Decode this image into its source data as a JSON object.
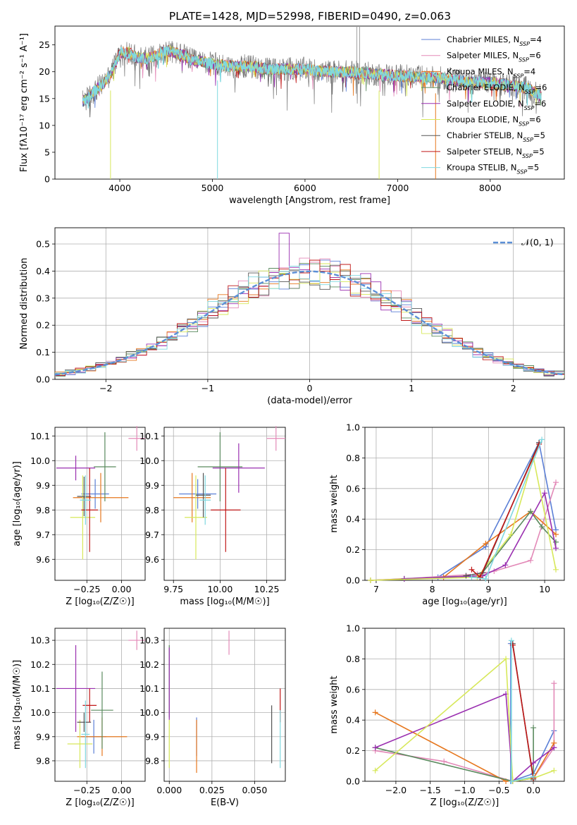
{
  "figure_title": "PLATE=1428, MJD=52998, FIBERID=0490, z=0.063",
  "models": [
    {
      "name": "Chabrier MILES",
      "nssp": "4",
      "color": "#5b7fd6"
    },
    {
      "name": "Salpeter MILES",
      "nssp": "6",
      "color": "#e38ab8"
    },
    {
      "name": "Kroupa MILES",
      "nssp": "4",
      "color": "#e6771e"
    },
    {
      "name": "Chabrier ELODIE",
      "nssp": "6",
      "color": "#5a8a5e"
    },
    {
      "name": "Salpeter ELODIE",
      "nssp": "6",
      "color": "#9a2fb0"
    },
    {
      "name": "Kroupa ELODIE",
      "nssp": "6",
      "color": "#d7e85a"
    },
    {
      "name": "Chabrier STELIB",
      "nssp": "5",
      "color": "#555555"
    },
    {
      "name": "Salpeter STELIB",
      "nssp": "5",
      "color": "#c01818"
    },
    {
      "name": "Kroupa STELIB",
      "nssp": "5",
      "color": "#7fd8e0"
    }
  ],
  "chart_data": [
    {
      "id": "spectrum",
      "type": "line",
      "xlabel": "wavelength [Angstrom, rest frame]",
      "ylabel": "Flux [fλ10⁻¹⁷ erg cm⁻² s⁻¹ A⁻¹]",
      "xlim": [
        3300,
        8800
      ],
      "ylim": [
        0,
        28.5
      ],
      "xticks": [
        "4000",
        "5000",
        "6000",
        "7000",
        "8000"
      ],
      "yticks": [
        "0",
        "5",
        "10",
        "15",
        "20",
        "25"
      ],
      "legend": "right",
      "continuum": {
        "x": [
          3600,
          3650,
          3700,
          3800,
          3900,
          4000,
          4100,
          4200,
          4300,
          4400,
          4500,
          4600,
          4700,
          4800,
          5000,
          5200,
          5400,
          5600,
          5800,
          6000,
          6200,
          6400,
          6600,
          6800,
          7000,
          7200,
          7400,
          7600,
          7800,
          8000,
          8200,
          8400,
          8550
        ],
        "y": [
          14.5,
          15,
          16,
          17.5,
          19.5,
          23.5,
          23.5,
          22.5,
          22.5,
          23,
          24,
          23.5,
          23,
          22,
          21.5,
          21,
          21,
          20.5,
          20.5,
          20.5,
          20,
          20,
          19.8,
          19.5,
          19.3,
          19,
          19,
          18.5,
          18,
          18,
          17.5,
          17,
          15.5
        ]
      },
      "dips": [
        {
          "x": 3900,
          "y": 0
        },
        {
          "x": 5055,
          "y": 0
        },
        {
          "x": 6800,
          "y": 0
        },
        {
          "x": 7410,
          "y": 0
        }
      ],
      "spikes": [
        {
          "x": 6560,
          "y": 28.5
        },
        {
          "x": 6590,
          "y": 28.5
        }
      ]
    },
    {
      "id": "residuals",
      "type": "bar",
      "xlabel": "(data-model)/error",
      "ylabel": "Normed distribution",
      "xlim": [
        -2.5,
        2.5
      ],
      "ylim": [
        0,
        0.56
      ],
      "xticks": [
        "−2",
        "−1",
        "0",
        "1",
        "2"
      ],
      "yticks": [
        "0.0",
        "0.1",
        "0.2",
        "0.3",
        "0.4",
        "0.5"
      ],
      "bin_width": 0.1,
      "reference_label": "𝒩(0, 1)",
      "reference_color": "#5b8fd6",
      "legend": "top-right"
    },
    {
      "id": "age-vs-Z",
      "type": "scatter",
      "xlabel": "Z [log₁₀(Z/Z☉)]",
      "ylabel": "age  [log₁₀(age/yr)]",
      "xlim": [
        -0.48,
        0.17
      ],
      "ylim": [
        9.515,
        10.135
      ],
      "xticks": [
        "−0.25",
        "0.00"
      ],
      "yticks": [
        "9.6",
        "9.7",
        "9.8",
        "9.9",
        "10.0",
        "10.1"
      ],
      "points": [
        {
          "x": -0.19,
          "y": 9.865,
          "xerr": 0.1,
          "yerr": 0.06
        },
        {
          "x": 0.11,
          "y": 10.09,
          "xerr": 0.06,
          "yerr": 0.05
        },
        {
          "x": -0.15,
          "y": 9.85,
          "xerr": 0.2,
          "yerr": 0.1
        },
        {
          "x": -0.12,
          "y": 9.975,
          "xerr": 0.08,
          "yerr": 0.14
        },
        {
          "x": -0.33,
          "y": 9.97,
          "xerr": 0.14,
          "yerr": 0.05
        },
        {
          "x": -0.28,
          "y": 9.77,
          "xerr": 0.09,
          "yerr": 0.17
        },
        {
          "x": -0.27,
          "y": 9.855,
          "xerr": 0.05,
          "yerr": 0.08
        },
        {
          "x": -0.23,
          "y": 9.8,
          "xerr": 0.06,
          "yerr": 0.17
        },
        {
          "x": -0.26,
          "y": 9.84,
          "xerr": 0.04,
          "yerr": 0.1
        }
      ]
    },
    {
      "id": "age-vs-mass",
      "type": "scatter",
      "xlabel": "mass [log₁₀(M/M☉)]",
      "ylabel": "",
      "xlim": [
        9.7,
        10.35
      ],
      "ylim": [
        9.515,
        10.135
      ],
      "xticks": [
        "9.75",
        "10.00",
        "10.25"
      ],
      "yticks": [
        "9.6",
        "9.7",
        "9.8",
        "9.9",
        "10.0",
        "10.1"
      ],
      "points": [
        {
          "x": 9.88,
          "y": 9.865,
          "xerr": 0.1,
          "yerr": 0.06
        },
        {
          "x": 10.3,
          "y": 10.09,
          "xerr": 0.05,
          "yerr": 0.05
        },
        {
          "x": 9.85,
          "y": 9.85,
          "xerr": 0.1,
          "yerr": 0.1
        },
        {
          "x": 10.0,
          "y": 9.975,
          "xerr": 0.12,
          "yerr": 0.14
        },
        {
          "x": 10.1,
          "y": 9.97,
          "xerr": 0.14,
          "yerr": 0.1
        },
        {
          "x": 9.87,
          "y": 9.77,
          "xerr": 0.06,
          "yerr": 0.17
        },
        {
          "x": 9.91,
          "y": 9.86,
          "xerr": 0.04,
          "yerr": 0.09
        },
        {
          "x": 10.03,
          "y": 9.8,
          "xerr": 0.08,
          "yerr": 0.17
        },
        {
          "x": 9.92,
          "y": 9.84,
          "xerr": 0.03,
          "yerr": 0.1
        }
      ]
    },
    {
      "id": "weight-vs-age",
      "type": "line",
      "xlabel": "age  [log₁₀(age/yr)]",
      "ylabel": "mass weight",
      "xlim": [
        6.8,
        10.35
      ],
      "ylim": [
        0,
        1.0
      ],
      "xticks": [
        "7",
        "8",
        "9",
        "10"
      ],
      "yticks": [
        "0.0",
        "0.2",
        "0.4",
        "0.6",
        "0.8",
        "1.0"
      ],
      "series": [
        {
          "x": [
            6.9,
            8.1,
            8.95,
            9.9,
            10.2
          ],
          "y": [
            0.0,
            0.02,
            0.22,
            0.9,
            0.33
          ]
        },
        {
          "x": [
            7.5,
            8.8,
            9.1,
            9.75,
            10.2
          ],
          "y": [
            0.01,
            0.04,
            0.06,
            0.13,
            0.64
          ]
        },
        {
          "x": [
            6.9,
            8.2,
            8.95,
            9.75,
            10.2
          ],
          "y": [
            0.0,
            0.02,
            0.24,
            0.45,
            0.3
          ]
        },
        {
          "x": [
            7.5,
            8.85,
            9.75,
            9.95,
            10.2
          ],
          "y": [
            0.01,
            0.03,
            0.45,
            0.35,
            0.25
          ]
        },
        {
          "x": [
            7.5,
            8.9,
            9.3,
            10.0,
            10.2
          ],
          "y": [
            0.01,
            0.03,
            0.1,
            0.57,
            0.21
          ]
        },
        {
          "x": [
            6.9,
            8.8,
            9.4,
            9.8,
            10.2
          ],
          "y": [
            0.0,
            0.02,
            0.3,
            0.8,
            0.07
          ]
        },
        {
          "x": [
            8.6,
            8.9,
            9.9
          ],
          "y": [
            0.03,
            0.05,
            0.9
          ]
        },
        {
          "x": [
            8.7,
            8.85,
            9.9
          ],
          "y": [
            0.07,
            0.02,
            0.89
          ]
        },
        {
          "x": [
            8.7,
            8.95,
            9.95
          ],
          "y": [
            0.02,
            0.01,
            0.92
          ]
        }
      ]
    },
    {
      "id": "mass-vs-Z",
      "type": "scatter",
      "xlabel": "Z [log₁₀(Z/Z☉)]",
      "ylabel": "mass [log₁₀(M/M☉)]",
      "xlim": [
        -0.48,
        0.17
      ],
      "ylim": [
        9.715,
        10.35
      ],
      "xticks": [
        "−0.25",
        "0.00"
      ],
      "yticks": [
        "9.8",
        "9.9",
        "10.0",
        "10.1",
        "10.2",
        "10.3"
      ],
      "points": [
        {
          "x": -0.2,
          "y": 9.9,
          "xerr": 0.09,
          "yerr": 0.07
        },
        {
          "x": 0.11,
          "y": 10.3,
          "xerr": 0.06,
          "yerr": 0.04
        },
        {
          "x": -0.14,
          "y": 9.9,
          "xerr": 0.18,
          "yerr": 0.08
        },
        {
          "x": -0.14,
          "y": 10.01,
          "xerr": 0.08,
          "yerr": 0.16
        },
        {
          "x": -0.33,
          "y": 10.1,
          "xerr": 0.14,
          "yerr": 0.18
        },
        {
          "x": -0.3,
          "y": 9.87,
          "xerr": 0.09,
          "yerr": 0.1
        },
        {
          "x": -0.27,
          "y": 9.96,
          "xerr": 0.05,
          "yerr": 0.04
        },
        {
          "x": -0.23,
          "y": 10.03,
          "xerr": 0.05,
          "yerr": 0.07
        },
        {
          "x": -0.26,
          "y": 9.91,
          "xerr": 0.03,
          "yerr": 0.14
        }
      ]
    },
    {
      "id": "mass-vs-ebv",
      "type": "scatter",
      "xlabel": "E(B-V)",
      "ylabel": "",
      "xlim": [
        -0.003,
        0.068
      ],
      "ylim": [
        9.715,
        10.35
      ],
      "xticks": [
        "0.000",
        "0.025",
        "0.050"
      ],
      "yticks": [
        "9.8",
        "9.9",
        "10.0",
        "10.1",
        "10.2",
        "10.3"
      ],
      "points": [
        {
          "x": 0.016,
          "y": 9.9,
          "xerr": 0,
          "yerr": 0.08
        },
        {
          "x": 0.035,
          "y": 10.29,
          "xerr": 0,
          "yerr": 0.05
        },
        {
          "x": 0.016,
          "y": 9.86,
          "xerr": 0,
          "yerr": 0.11
        },
        {
          "x": 0.0,
          "y": 10.13,
          "xerr": 0,
          "yerr": 0.15
        },
        {
          "x": 0.0,
          "y": 10.12,
          "xerr": 0,
          "yerr": 0.15
        },
        {
          "x": 0.0,
          "y": 9.87,
          "xerr": 0,
          "yerr": 0.1
        },
        {
          "x": 0.06,
          "y": 9.91,
          "xerr": 0,
          "yerr": 0.12
        },
        {
          "x": 0.065,
          "y": 10.03,
          "xerr": 0,
          "yerr": 0.07
        },
        {
          "x": 0.065,
          "y": 9.89,
          "xerr": 0,
          "yerr": 0.12
        }
      ]
    },
    {
      "id": "weight-vs-Z",
      "type": "line",
      "xlabel": "Z [log₁₀(Z/Z☉)]",
      "ylabel": "mass weight",
      "xlim": [
        -2.45,
        0.45
      ],
      "ylim": [
        0,
        1.0
      ],
      "xticks": [
        "−2.0",
        "−1.5",
        "−1.0",
        "−0.5",
        "0.0"
      ],
      "yticks": [
        "0.0",
        "0.2",
        "0.4",
        "0.6",
        "0.8",
        "1.0"
      ],
      "series": [
        {
          "x": [
            -0.33,
            -0.33,
            0.0,
            0.3
          ],
          "y": [
            0.9,
            0.0,
            0.05,
            0.33
          ]
        },
        {
          "x": [
            -2.3,
            -1.3,
            -0.3,
            0.0,
            0.3,
            0.3
          ],
          "y": [
            0.2,
            0.13,
            0.0,
            0.02,
            0.22,
            0.64
          ]
        },
        {
          "x": [
            -2.3,
            -0.4,
            0.0,
            0.3
          ],
          "y": [
            0.45,
            0.0,
            0.02,
            0.25
          ]
        },
        {
          "x": [
            -2.3,
            -0.3,
            0.0,
            0.0
          ],
          "y": [
            0.22,
            0.0,
            0.02,
            0.35
          ]
        },
        {
          "x": [
            -2.3,
            -0.4,
            -0.3,
            0.0,
            0.3
          ],
          "y": [
            0.22,
            0.57,
            0.0,
            0.12,
            0.22
          ]
        },
        {
          "x": [
            -2.3,
            -0.4,
            -0.3,
            0.0,
            0.3
          ],
          "y": [
            0.07,
            0.8,
            0.0,
            0.02,
            0.07
          ]
        },
        {
          "x": [
            -0.3,
            0.0
          ],
          "y": [
            0.9,
            0.01
          ]
        },
        {
          "x": [
            -0.3,
            0.0
          ],
          "y": [
            0.89,
            0.02
          ]
        },
        {
          "x": [
            -0.32,
            -0.32,
            0.0
          ],
          "y": [
            0.92,
            0.0,
            0.03
          ]
        }
      ]
    }
  ]
}
